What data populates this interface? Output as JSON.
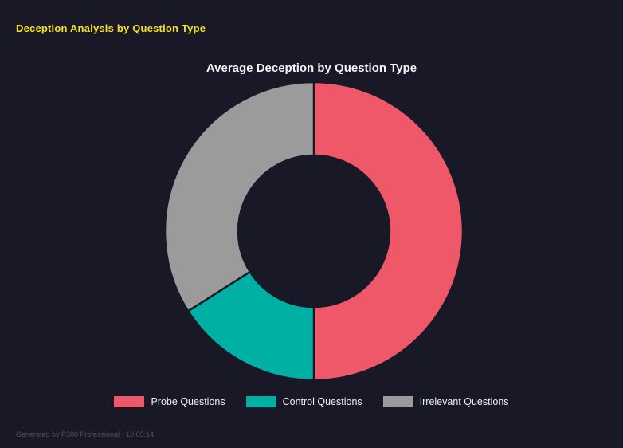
{
  "page": {
    "title": "Deception Analysis by Question Type",
    "footer": "Generated by P300 Professional - 10:05:14"
  },
  "theme": {
    "background": "#181827",
    "page_title_color": "#f6e21c",
    "chart_title_color": "#f5f5f5",
    "legend_text_color": "#f0f0f0",
    "footer_text_color": "#50505f"
  },
  "chart_data": {
    "type": "pie",
    "subtype": "donut",
    "title": "Average Deception by Question Type",
    "categories": [
      "Probe Questions",
      "Control Questions",
      "Irrelevant Questions"
    ],
    "values": [
      50,
      16,
      34
    ],
    "values_unit": "percent-of-total (estimated from arc angles)",
    "colors": [
      "#ef5868",
      "#00b0a4",
      "#9b9b9b"
    ],
    "start_angle_deg": 0,
    "direction": "clockwise",
    "donut_hole_ratio": 0.51,
    "segment_border_color": "#181827",
    "legend_position": "bottom",
    "grid": false
  }
}
